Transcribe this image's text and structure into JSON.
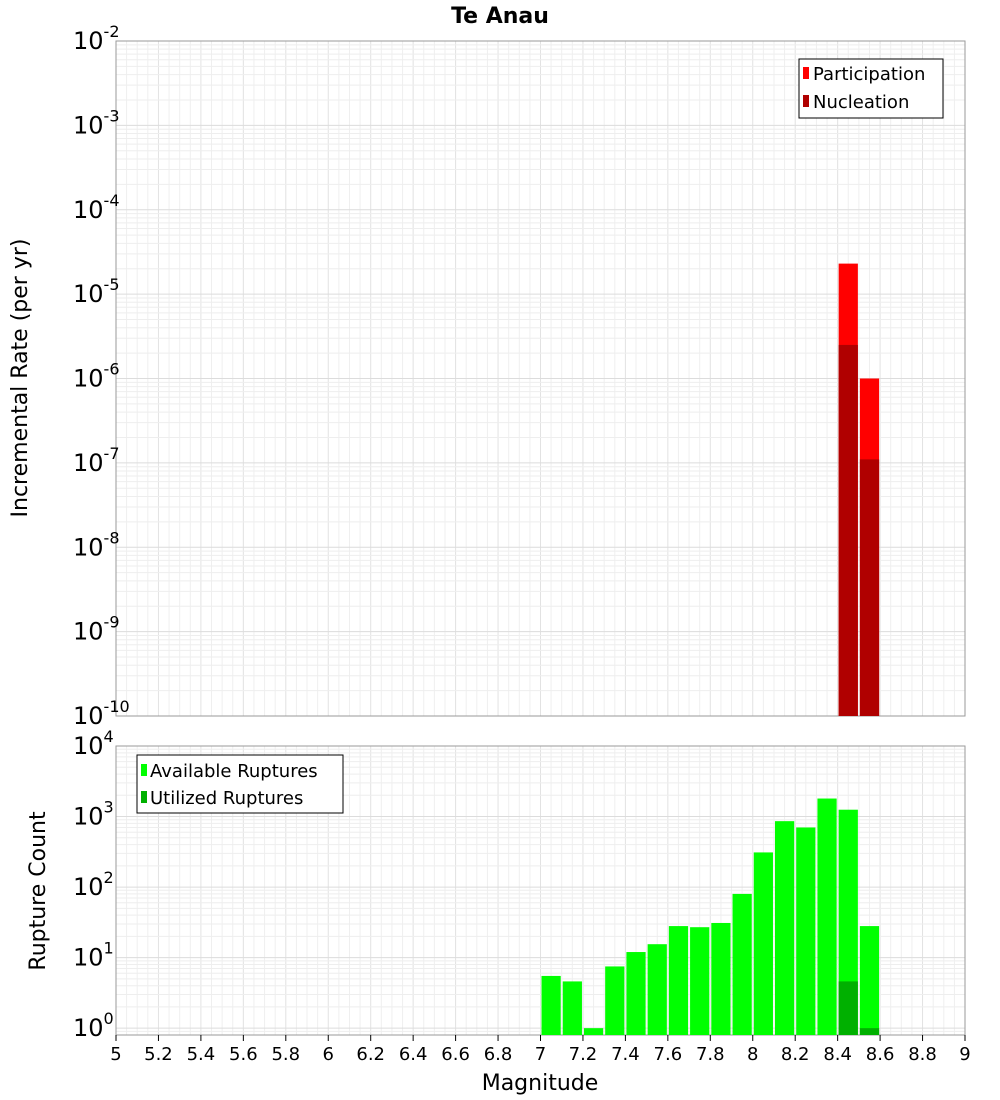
{
  "chart_data": [
    {
      "type": "bar",
      "title": "Te Anau",
      "ylabel": "Incremental Rate (per yr)",
      "xlabel": "",
      "yscale": "log",
      "ylim": [
        1e-10,
        0.01
      ],
      "xlim": [
        5,
        9
      ],
      "yticks": [
        {
          "base": "10",
          "exp": "-10"
        },
        {
          "base": "10",
          "exp": "-9"
        },
        {
          "base": "10",
          "exp": "-8"
        },
        {
          "base": "10",
          "exp": "-7"
        },
        {
          "base": "10",
          "exp": "-6"
        },
        {
          "base": "10",
          "exp": "-5"
        },
        {
          "base": "10",
          "exp": "-4"
        },
        {
          "base": "10",
          "exp": "-3"
        },
        {
          "base": "10",
          "exp": "-2"
        }
      ],
      "grid": true,
      "legend_position": "top-right",
      "series": [
        {
          "name": "Participation",
          "color": "#ff0000",
          "x": [
            8.45,
            8.55
          ],
          "values": [
            2.3e-05,
            1e-06
          ]
        },
        {
          "name": "Nucleation",
          "color": "#b00000",
          "x": [
            8.45,
            8.55
          ],
          "values": [
            2.5e-06,
            1.1e-07
          ]
        }
      ]
    },
    {
      "type": "bar",
      "title": "",
      "ylabel": "Rupture Count",
      "xlabel": "Magnitude",
      "yscale": "log",
      "ylim": [
        0.8,
        10000
      ],
      "xlim": [
        5,
        9
      ],
      "xticks": [
        "5",
        "5.2",
        "5.4",
        "5.6",
        "5.8",
        "6",
        "6.2",
        "6.4",
        "6.6",
        "6.8",
        "7",
        "7.2",
        "7.4",
        "7.6",
        "7.8",
        "8",
        "8.2",
        "8.4",
        "8.6",
        "8.8",
        "9"
      ],
      "yticks": [
        {
          "base": "10",
          "exp": "0"
        },
        {
          "base": "10",
          "exp": "1"
        },
        {
          "base": "10",
          "exp": "2"
        },
        {
          "base": "10",
          "exp": "3"
        },
        {
          "base": "10",
          "exp": "4"
        }
      ],
      "grid": true,
      "legend_position": "top-left",
      "series": [
        {
          "name": "Available Ruptures",
          "color": "#00ff00",
          "x": [
            7.05,
            7.15,
            7.25,
            7.35,
            7.45,
            7.55,
            7.65,
            7.75,
            7.85,
            7.95,
            8.05,
            8.15,
            8.25,
            8.35,
            8.45,
            8.55
          ],
          "values": [
            5.5,
            4.6,
            1.0,
            7.5,
            12,
            15.5,
            28,
            27,
            31,
            80,
            310,
            860,
            700,
            1800,
            1250,
            28
          ]
        },
        {
          "name": "Utilized Ruptures",
          "color": "#00b000",
          "x": [
            8.45,
            8.55
          ],
          "values": [
            4.6,
            1.0
          ]
        }
      ]
    }
  ]
}
